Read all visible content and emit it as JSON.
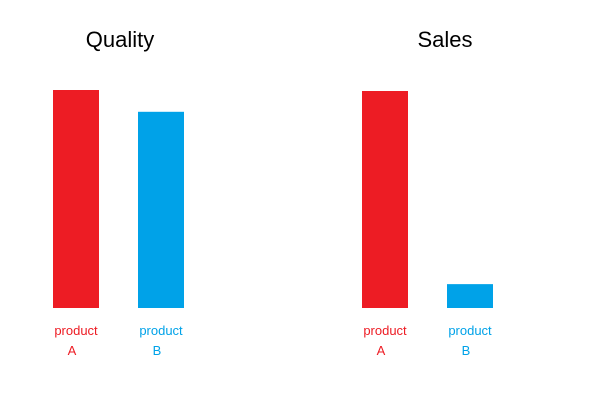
{
  "chart_data": [
    {
      "type": "bar",
      "title": "Quality",
      "categories": [
        "product A",
        "product B"
      ],
      "category_lines": [
        [
          "product",
          "A"
        ],
        [
          "product",
          "B"
        ]
      ],
      "values": [
        100,
        90
      ],
      "colors": [
        "#ED1C24",
        "#00A2E8"
      ],
      "ylim": [
        0,
        100
      ],
      "axes": "none",
      "grid": false,
      "legend": "none"
    },
    {
      "type": "bar",
      "title": "Sales",
      "categories": [
        "product A",
        "product B"
      ],
      "category_lines": [
        [
          "product",
          "A"
        ],
        [
          "product",
          "B"
        ]
      ],
      "values": [
        100,
        11
      ],
      "colors": [
        "#ED1C24",
        "#00A2E8"
      ],
      "ylim": [
        0,
        100
      ],
      "axes": "none",
      "grid": false,
      "legend": "none"
    }
  ]
}
